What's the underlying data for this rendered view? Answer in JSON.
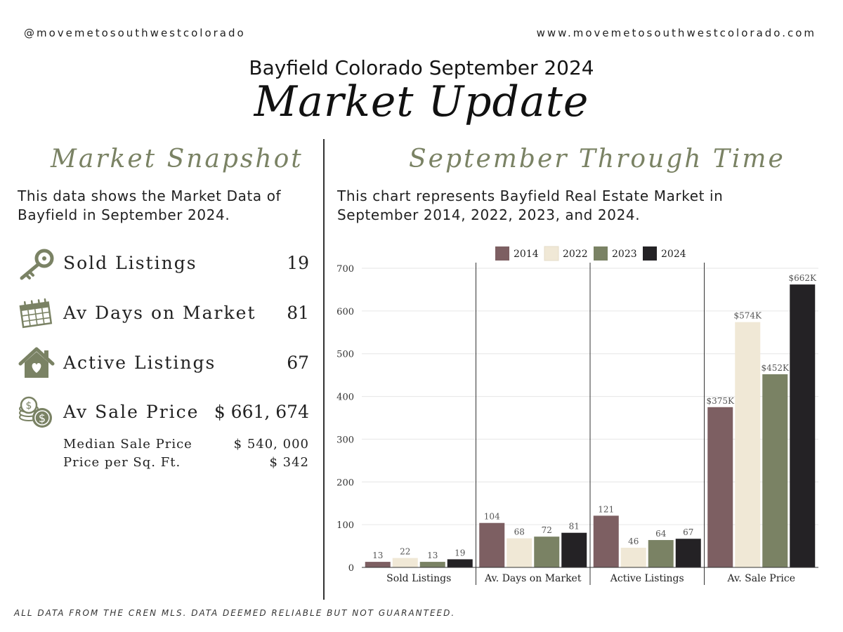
{
  "header": {
    "handle": "@movemetosouthwestcolorado",
    "website": "www.movemetosouthwestcolorado.com",
    "subtitle": "Bayfield Colorado September 2024",
    "title": "Market Update"
  },
  "snapshot": {
    "heading": "Market Snapshot",
    "description": "This data shows the Market Data of Bayfield in September 2024.",
    "metrics": [
      {
        "icon": "key-icon",
        "label": "Sold Listings",
        "value": "19"
      },
      {
        "icon": "calendar-icon",
        "label": "Av Days on Market",
        "value": "81"
      },
      {
        "icon": "house-heart-icon",
        "label": "Active Listings",
        "value": "67"
      },
      {
        "icon": "coins-icon",
        "label": "Av Sale Price",
        "value": "$ 661, 674"
      }
    ],
    "sub_metrics": [
      {
        "label": "Median Sale Price",
        "value": "$ 540, 000"
      },
      {
        "label": "Price per Sq. Ft.",
        "value": "$ 342"
      }
    ],
    "icon_color": "#7a8264"
  },
  "through_time": {
    "heading": "September Through Time",
    "description": "This chart represents Bayfield Real Estate Market in September 2014, 2022, 2023, and 2024."
  },
  "chart_data": {
    "type": "bar",
    "categories": [
      "Sold Listings",
      "Av. Days on Market",
      "Active Listings",
      "Av. Sale Price"
    ],
    "series": [
      {
        "name": "2014",
        "color": "#7d5f62",
        "values": [
          13,
          104,
          121,
          375
        ],
        "labels": [
          "13",
          "104",
          "121",
          "$375K"
        ]
      },
      {
        "name": "2022",
        "color": "#f0e8d6",
        "values": [
          22,
          68,
          46,
          574
        ],
        "labels": [
          "22",
          "68",
          "46",
          "$574K"
        ]
      },
      {
        "name": "2023",
        "color": "#7a8264",
        "values": [
          13,
          72,
          64,
          452
        ],
        "labels": [
          "13",
          "72",
          "64",
          "$452K"
        ]
      },
      {
        "name": "2024",
        "color": "#242225",
        "values": [
          19,
          81,
          67,
          662
        ],
        "labels": [
          "19",
          "81",
          "67",
          "$662K"
        ]
      }
    ],
    "ylim": [
      0,
      700
    ],
    "yticks": [
      0,
      100,
      200,
      300,
      400,
      500,
      600,
      700
    ],
    "grid": true,
    "legend": "top-center"
  },
  "footer": {
    "disclaimer": "ALL DATA FROM THE CREN MLS. DATA DEEMED RELIABLE BUT NOT GUARANTEED."
  }
}
